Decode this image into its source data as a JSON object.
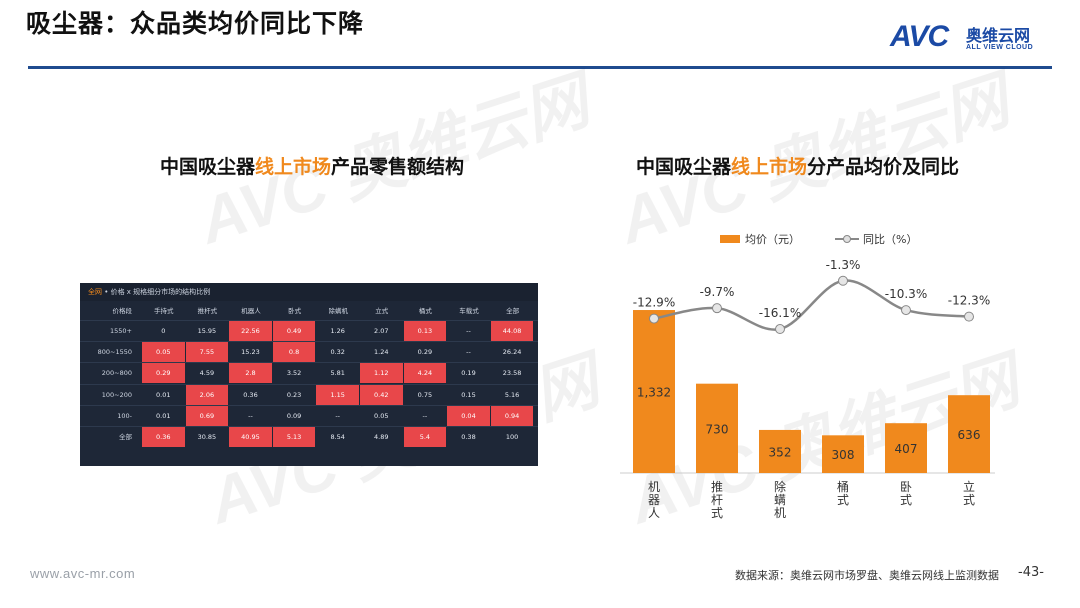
{
  "page": {
    "title": "吸尘器：众品类均价同比下降",
    "logo_text": "AVC",
    "logo_cn": "奥维云网",
    "logo_en": "ALL VIEW CLOUD",
    "watermark_text": "AVC 奥维云网",
    "watermark_en": "ALL VIEW CLOUD",
    "footer_url": "www.avc-mr.com",
    "footer_source": "数据来源：奥维云网市场罗盘、奥维云网线上监测数据",
    "page_number": "-43-"
  },
  "colors": {
    "accent": "#f0891d",
    "brand": "#1b4aa5",
    "rule": "#1f4b8f",
    "heat": "#e8474a",
    "panel": "#1e2737",
    "line": "#888888"
  },
  "chart_data": [
    {
      "type": "heatmap",
      "title_pre": "中国吸尘器",
      "title_hl": "线上市场",
      "title_post": "产品零售额结构",
      "panel_title_hl": "全网",
      "panel_title_rest": " • 价格 x 规格细分市场的结构比例",
      "corner_label": "价格段",
      "columns": [
        "手持式",
        "推杆式",
        "机器人",
        "卧式",
        "除螨机",
        "立式",
        "桶式",
        "车载式",
        "全部"
      ],
      "rows": [
        {
          "label": "1550+",
          "values": [
            "0",
            "15.95",
            "22.56",
            "0.49",
            "1.26",
            "2.07",
            "0.13",
            "--",
            "44.08"
          ],
          "hot": [
            false,
            false,
            true,
            true,
            false,
            false,
            true,
            false,
            true
          ]
        },
        {
          "label": "800~1550",
          "values": [
            "0.05",
            "7.55",
            "15.23",
            "0.8",
            "0.32",
            "1.24",
            "0.29",
            "--",
            "26.24"
          ],
          "hot": [
            true,
            true,
            false,
            true,
            false,
            false,
            false,
            false,
            false
          ]
        },
        {
          "label": "200~800",
          "values": [
            "0.29",
            "4.59",
            "2.8",
            "3.52",
            "5.81",
            "1.12",
            "4.24",
            "0.19",
            "23.58"
          ],
          "hot": [
            true,
            false,
            true,
            false,
            false,
            true,
            true,
            false,
            false
          ]
        },
        {
          "label": "100~200",
          "values": [
            "0.01",
            "2.06",
            "0.36",
            "0.23",
            "1.15",
            "0.42",
            "0.75",
            "0.15",
            "5.16"
          ],
          "hot": [
            false,
            true,
            false,
            false,
            true,
            true,
            false,
            false,
            false
          ]
        },
        {
          "label": "100-",
          "values": [
            "0.01",
            "0.69",
            "--",
            "0.09",
            "--",
            "0.05",
            "--",
            "0.04",
            "0.94"
          ],
          "hot": [
            false,
            true,
            false,
            false,
            false,
            false,
            false,
            true,
            true
          ]
        },
        {
          "label": "全部",
          "values": [
            "0.36",
            "30.85",
            "40.95",
            "5.13",
            "8.54",
            "4.89",
            "5.4",
            "0.38",
            "100"
          ],
          "hot": [
            true,
            false,
            true,
            true,
            false,
            false,
            true,
            false,
            false
          ]
        }
      ]
    },
    {
      "type": "bar",
      "title_pre": "中国吸尘器",
      "title_hl": "线上市场",
      "title_post": "分产品均价及同比",
      "categories": [
        "机器人",
        "推杆式",
        "除螨机",
        "桶式",
        "卧式",
        "立式"
      ],
      "series": [
        {
          "name": "均价（元）",
          "chart": "bar",
          "values": [
            1332,
            730,
            352,
            308,
            407,
            636
          ],
          "labels": [
            "1,332",
            "730",
            "352",
            "308",
            "407",
            "636"
          ],
          "color": "#f0891d"
        },
        {
          "name": "同比（%）",
          "chart": "line",
          "values": [
            -12.9,
            -9.7,
            -16.1,
            -1.3,
            -10.3,
            -12.3
          ],
          "labels": [
            "-12.9%",
            "-9.7%",
            "-16.1%",
            "-1.3%",
            "-10.3%",
            "-12.3%"
          ],
          "color": "#888888"
        }
      ],
      "bar_ylim": [
        0,
        1700
      ],
      "line_ylim": [
        -21,
        2
      ],
      "legend_position": "top",
      "grid": false
    }
  ]
}
